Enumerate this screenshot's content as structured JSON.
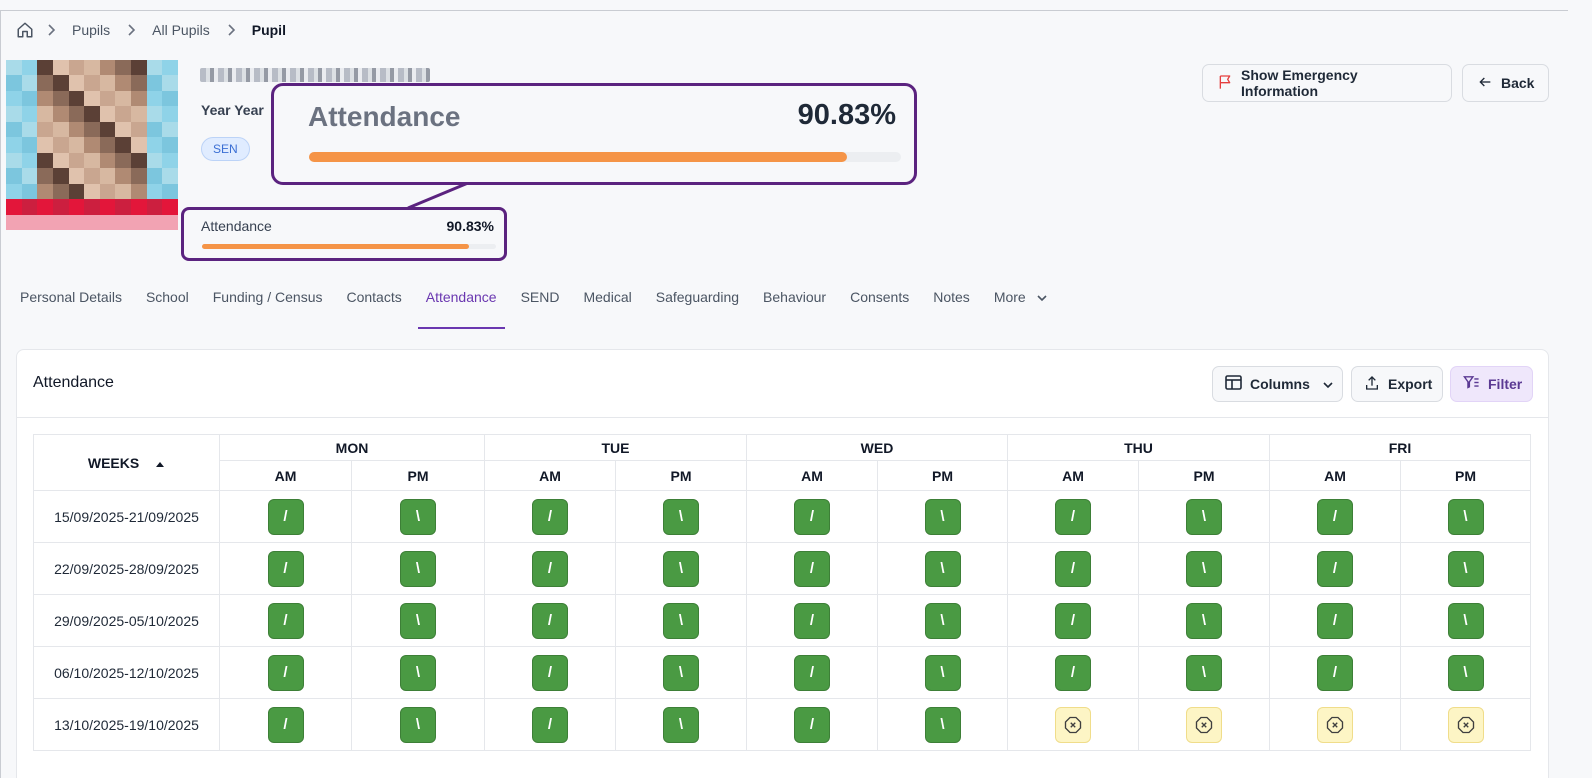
{
  "breadcrumb": {
    "items": [
      "Pupils",
      "All Pupils",
      "Pupil"
    ]
  },
  "pupil": {
    "year_label": "Year Year",
    "badge": "SEN",
    "attendance": {
      "label": "Attendance",
      "value_text": "90.83%",
      "percent": 90.83
    }
  },
  "header_buttons": {
    "emergency": "Show Emergency Information",
    "back": "Back"
  },
  "tabs": [
    "Personal Details",
    "School",
    "Funding / Census",
    "Contacts",
    "Attendance",
    "SEND",
    "Medical",
    "Safeguarding",
    "Behaviour",
    "Consents",
    "Notes",
    "More"
  ],
  "active_tab": "Attendance",
  "card": {
    "title": "Attendance",
    "columns_label": "Columns",
    "export_label": "Export",
    "filter_label": "Filter"
  },
  "table": {
    "weeks_header": "WEEKS",
    "days": [
      "MON",
      "TUE",
      "WED",
      "THU",
      "FRI"
    ],
    "sessions": [
      "AM",
      "PM"
    ],
    "rows": [
      {
        "week": "15/09/2025-21/09/2025",
        "marks": [
          "/",
          "\\",
          "/",
          "\\",
          "/",
          "\\",
          "/",
          "\\",
          "/",
          "\\"
        ]
      },
      {
        "week": "22/09/2025-28/09/2025",
        "marks": [
          "/",
          "\\",
          "/",
          "\\",
          "/",
          "\\",
          "/",
          "\\",
          "/",
          "\\"
        ]
      },
      {
        "week": "29/09/2025-05/10/2025",
        "marks": [
          "/",
          "\\",
          "/",
          "\\",
          "/",
          "\\",
          "/",
          "\\",
          "/",
          "\\"
        ]
      },
      {
        "week": "06/10/2025-12/10/2025",
        "marks": [
          "/",
          "\\",
          "/",
          "\\",
          "/",
          "\\",
          "/",
          "\\",
          "/",
          "\\"
        ]
      },
      {
        "week": "13/10/2025-19/10/2025",
        "marks": [
          "/",
          "\\",
          "/",
          "\\",
          "/",
          "\\",
          "x",
          "x",
          "x",
          "x"
        ]
      }
    ]
  },
  "colors": {
    "accent": "#6a37b0",
    "present": "#4a9a43",
    "absent": "#fdf5c5",
    "progress": "#f59447",
    "callout": "#5b237f"
  }
}
